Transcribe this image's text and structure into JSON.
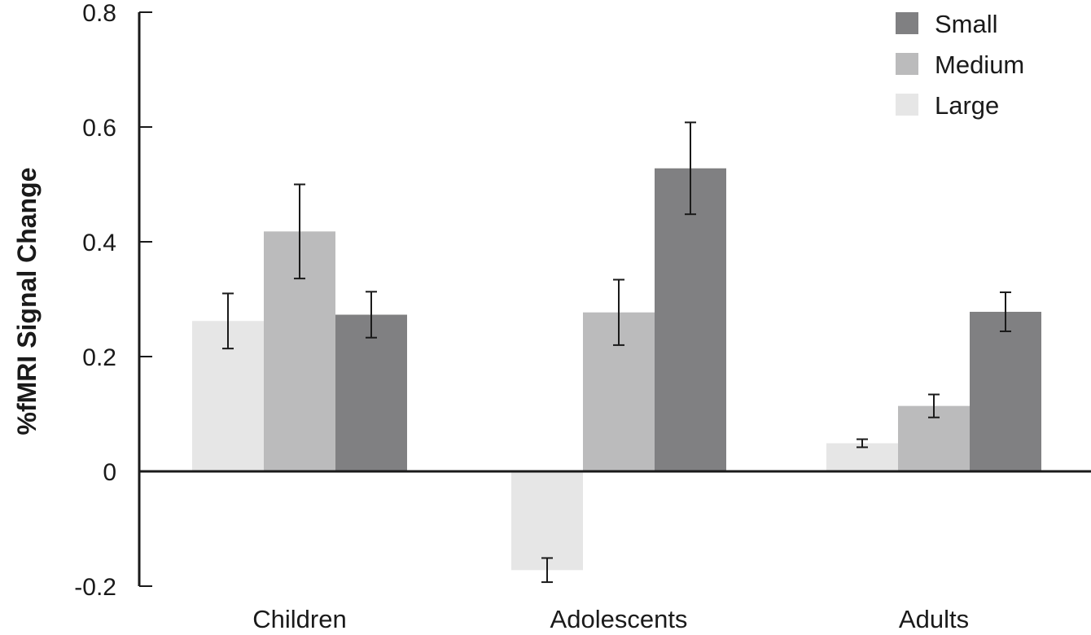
{
  "chart_data": {
    "type": "bar",
    "ylabel": "%fMRI Signal Change",
    "xlabel": "",
    "ylim": [
      -0.2,
      0.8
    ],
    "yticks": [
      {
        "value": 0.8,
        "label": "0.8"
      },
      {
        "value": 0.6,
        "label": "0.6"
      },
      {
        "value": 0.4,
        "label": "0.4"
      },
      {
        "value": 0.2,
        "label": "0.2"
      },
      {
        "value": 0,
        "label": "0"
      },
      {
        "value": -0.2,
        "label": "-0.2"
      }
    ],
    "categories": [
      "Children",
      "Adolescents",
      "Adults"
    ],
    "series": [
      {
        "name": "Large",
        "color": "#e6e6e6",
        "values": [
          0.262,
          -0.172,
          0.049
        ],
        "errors": [
          0.048,
          0.021,
          0.007
        ]
      },
      {
        "name": "Medium",
        "color": "#bbbbbc",
        "values": [
          0.418,
          0.277,
          0.114
        ],
        "errors": [
          0.082,
          0.057,
          0.02
        ]
      },
      {
        "name": "Small",
        "color": "#808082",
        "values": [
          0.273,
          0.528,
          0.278
        ],
        "errors": [
          0.04,
          0.08,
          0.034
        ]
      }
    ],
    "legend": {
      "position": "top-right",
      "order": [
        "Small",
        "Medium",
        "Large"
      ]
    },
    "grid": false
  }
}
